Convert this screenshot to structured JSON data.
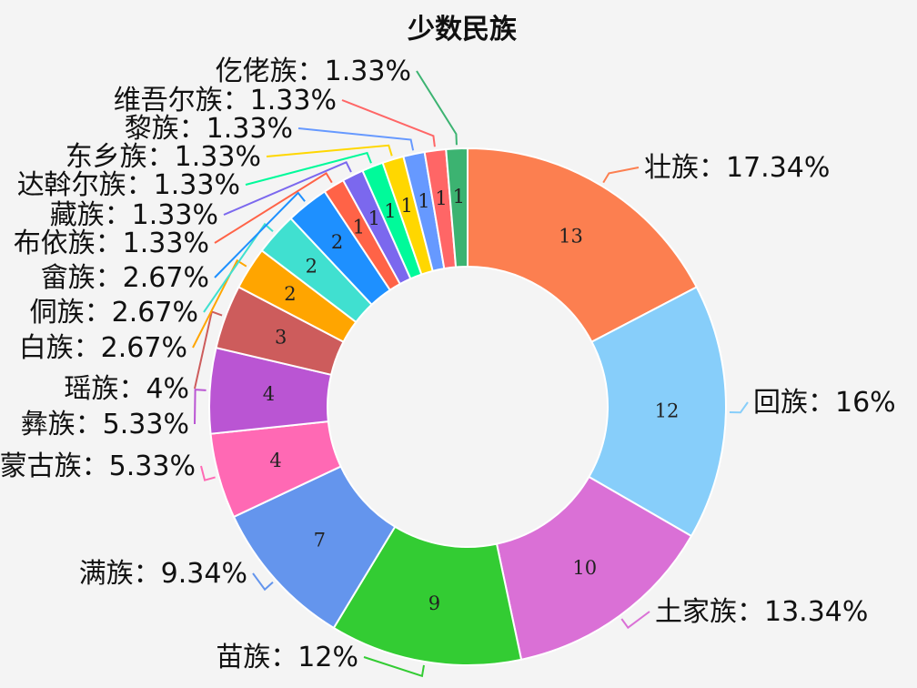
{
  "chart_data": {
    "type": "pie",
    "title": "少数民族",
    "slices": [
      {
        "name": "壮族",
        "value": 13,
        "percent_label": "17.34%",
        "color": "#fc7f50"
      },
      {
        "name": "回族",
        "value": 12,
        "percent_label": "16%",
        "color": "#87cefa"
      },
      {
        "name": "土家族",
        "value": 10,
        "percent_label": "13.34%",
        "color": "#da70d6"
      },
      {
        "name": "苗族",
        "value": 9,
        "percent_label": "12%",
        "color": "#33cc33"
      },
      {
        "name": "满族",
        "value": 7,
        "percent_label": "9.34%",
        "color": "#6495ed"
      },
      {
        "name": "蒙古族",
        "value": 4,
        "percent_label": "5.33%",
        "color": "#ff69b4"
      },
      {
        "name": "彝族",
        "value": 4,
        "percent_label": "5.33%",
        "color": "#ba55d3"
      },
      {
        "name": "瑶族",
        "value": 3,
        "percent_label": "4%",
        "color": "#cd5c5c"
      },
      {
        "name": "白族",
        "value": 2,
        "percent_label": "2.67%",
        "color": "#ffa500"
      },
      {
        "name": "侗族",
        "value": 2,
        "percent_label": "2.67%",
        "color": "#40e0d0"
      },
      {
        "name": "畲族",
        "value": 2,
        "percent_label": "2.67%",
        "color": "#1e90ff"
      },
      {
        "name": "布依族",
        "value": 1,
        "percent_label": "1.33%",
        "color": "#ff6347"
      },
      {
        "name": "藏族",
        "value": 1,
        "percent_label": "1.33%",
        "color": "#7b68ee"
      },
      {
        "name": "达斡尔族",
        "value": 1,
        "percent_label": "1.33%",
        "color": "#00fa9a"
      },
      {
        "name": "东乡族",
        "value": 1,
        "percent_label": "1.33%",
        "color": "#ffd700"
      },
      {
        "name": "黎族",
        "value": 1,
        "percent_label": "1.33%",
        "color": "#6699ff"
      },
      {
        "name": "维吾尔族",
        "value": 1,
        "percent_label": "1.33%",
        "color": "#ff6666"
      },
      {
        "name": "仡佬族",
        "value": 1,
        "percent_label": "1.33%",
        "color": "#3cb371"
      }
    ],
    "label_separator": "：",
    "legend": "none"
  }
}
